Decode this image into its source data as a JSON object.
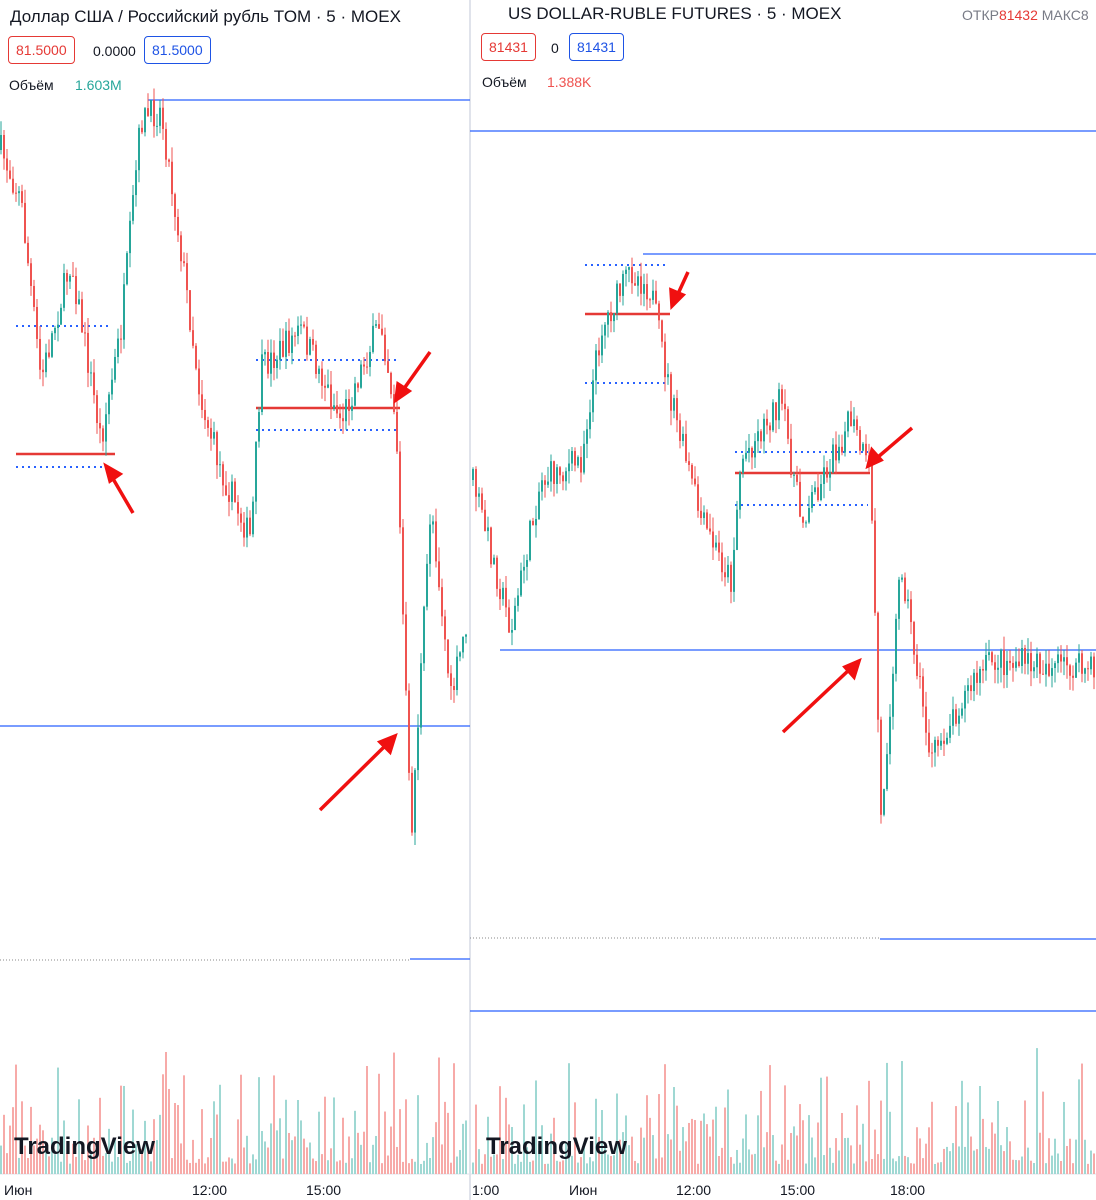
{
  "left_panel": {
    "title": "Доллар США / Российский рубль TOM · 5 · MOEX",
    "bid": "81.5000",
    "spread": "0.0000",
    "ask": "81.5000",
    "volume_label": "Объём",
    "volume_value": "1.603M",
    "logo": "TradingView",
    "time_labels": [
      "Июн",
      "12:00",
      "15:00"
    ]
  },
  "right_panel": {
    "title": "US DOLLAR-RUBLE FUTURES · 5 · MOEX",
    "bid": "81431",
    "spread": "0",
    "ask": "81431",
    "open_label": "ОТКР",
    "open_value": "81432",
    "high_label": "МАКС8",
    "volume_label": "Объём",
    "volume_value": "1.388K",
    "logo": "TradingView",
    "time_labels": [
      "1:00",
      "Июн",
      "12:00",
      "15:00",
      "18:00"
    ]
  }
}
